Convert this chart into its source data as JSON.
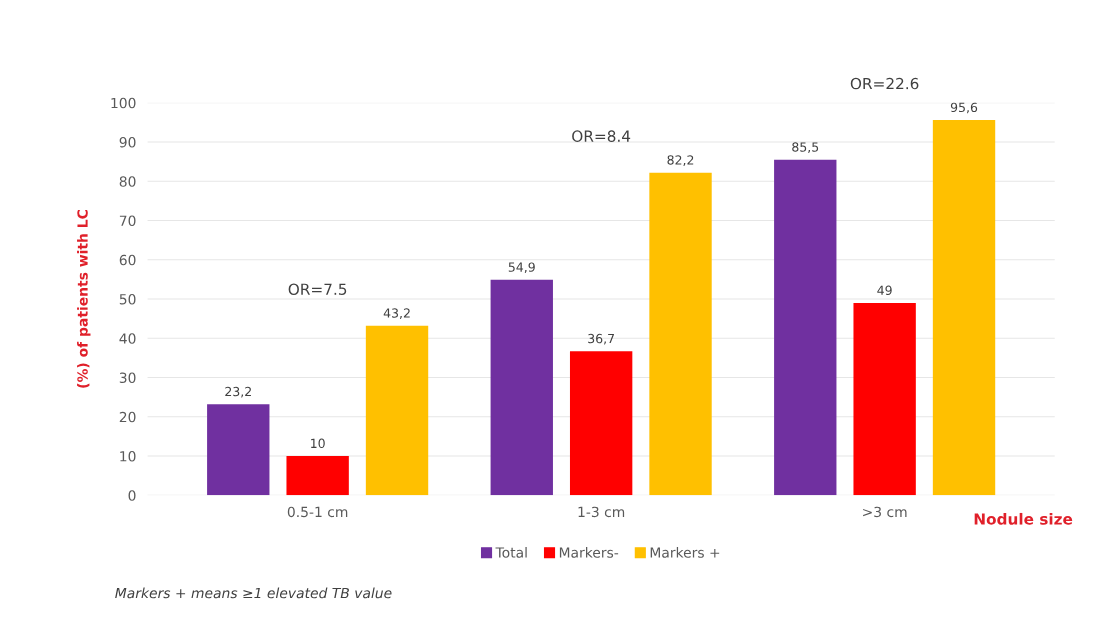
{
  "chart_data": {
    "type": "bar",
    "categories": [
      "0.5-1 cm",
      "1-3 cm",
      ">3 cm"
    ],
    "series": [
      {
        "name": "Total",
        "color": "#7030a0",
        "values": [
          23.2,
          54.9,
          85.5
        ],
        "value_labels": [
          "23,2",
          "54,9",
          "85,5"
        ]
      },
      {
        "name": "Markers-",
        "color": "#ff0000",
        "values": [
          10,
          36.7,
          49
        ],
        "value_labels": [
          "10",
          "36,7",
          "49"
        ]
      },
      {
        "name": "Markers +",
        "color": "#ffc000",
        "values": [
          43.2,
          82.2,
          95.6
        ],
        "value_labels": [
          "43,2",
          "82,2",
          "95,6"
        ]
      }
    ],
    "ylabel": "(%) of patients with LC",
    "xlabel": "Nodule size",
    "ylim": [
      0,
      100
    ],
    "yticks": [
      0,
      10,
      20,
      30,
      40,
      50,
      60,
      70,
      80,
      90,
      100
    ],
    "grid": "y",
    "legend": "bottom",
    "annotations": [
      "OR=7.5",
      "OR=8.4",
      "OR=22.6",
      "Markers + means ≥1 elevated TB value"
    ]
  }
}
